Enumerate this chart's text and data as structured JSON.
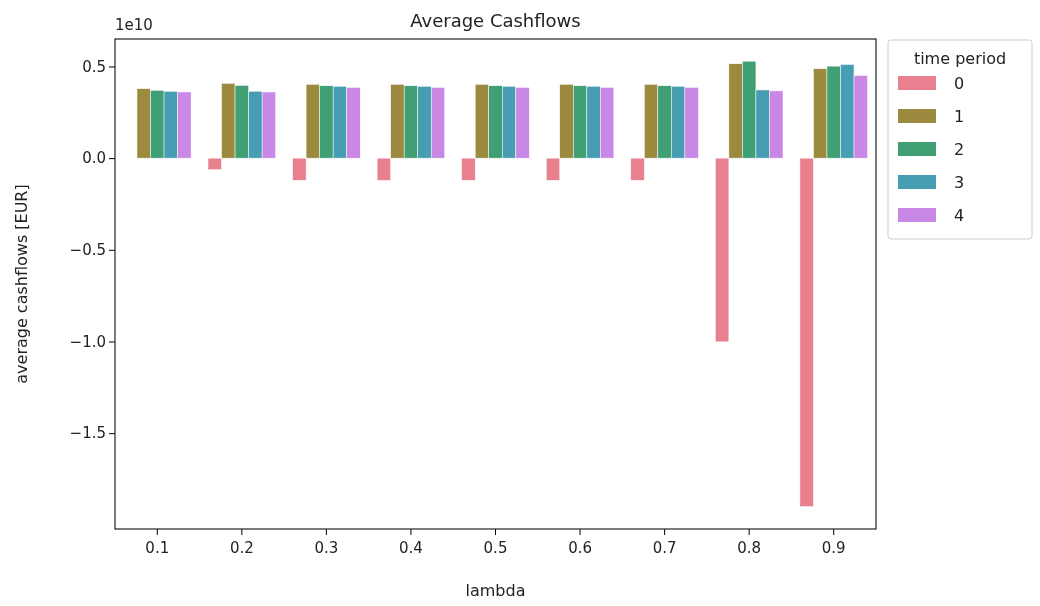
{
  "chart_data": {
    "type": "bar",
    "title": "Average Cashflows",
    "xlabel": "lambda",
    "ylabel": "average cashflows [EUR]",
    "legend_title": "time period",
    "categories": [
      "0.1",
      "0.2",
      "0.3",
      "0.4",
      "0.5",
      "0.6",
      "0.7",
      "0.8",
      "0.9"
    ],
    "series": [
      {
        "name": "0",
        "color": "#e8808f",
        "values": [
          0,
          -0.063,
          -0.121,
          -0.121,
          -0.121,
          -0.121,
          -0.121,
          -1.002,
          -1.901
        ]
      },
      {
        "name": "1",
        "color": "#9c8b3e",
        "values": [
          0.379,
          0.408,
          0.403,
          0.403,
          0.403,
          0.403,
          0.403,
          0.515,
          0.488
        ]
      },
      {
        "name": "2",
        "color": "#40a074",
        "values": [
          0.37,
          0.397,
          0.395,
          0.395,
          0.395,
          0.395,
          0.395,
          0.529,
          0.502
        ]
      },
      {
        "name": "3",
        "color": "#479db2",
        "values": [
          0.365,
          0.365,
          0.392,
          0.392,
          0.392,
          0.392,
          0.392,
          0.372,
          0.511
        ]
      },
      {
        "name": "4",
        "color": "#c988e6",
        "values": [
          0.361,
          0.361,
          0.386,
          0.386,
          0.386,
          0.386,
          0.386,
          0.367,
          0.451
        ]
      }
    ],
    "ylim": [
      -2.023,
      0.65
    ],
    "yticks": [
      {
        "value": -1.5,
        "label": "−1.5"
      },
      {
        "value": -1.0,
        "label": "−1.0"
      },
      {
        "value": -0.5,
        "label": "−0.5"
      },
      {
        "value": 0,
        "label": "0.0"
      },
      {
        "value": 0.5,
        "label": "0.5"
      }
    ],
    "annotations": [
      "1e10"
    ],
    "grid": false,
    "legend": "right"
  }
}
